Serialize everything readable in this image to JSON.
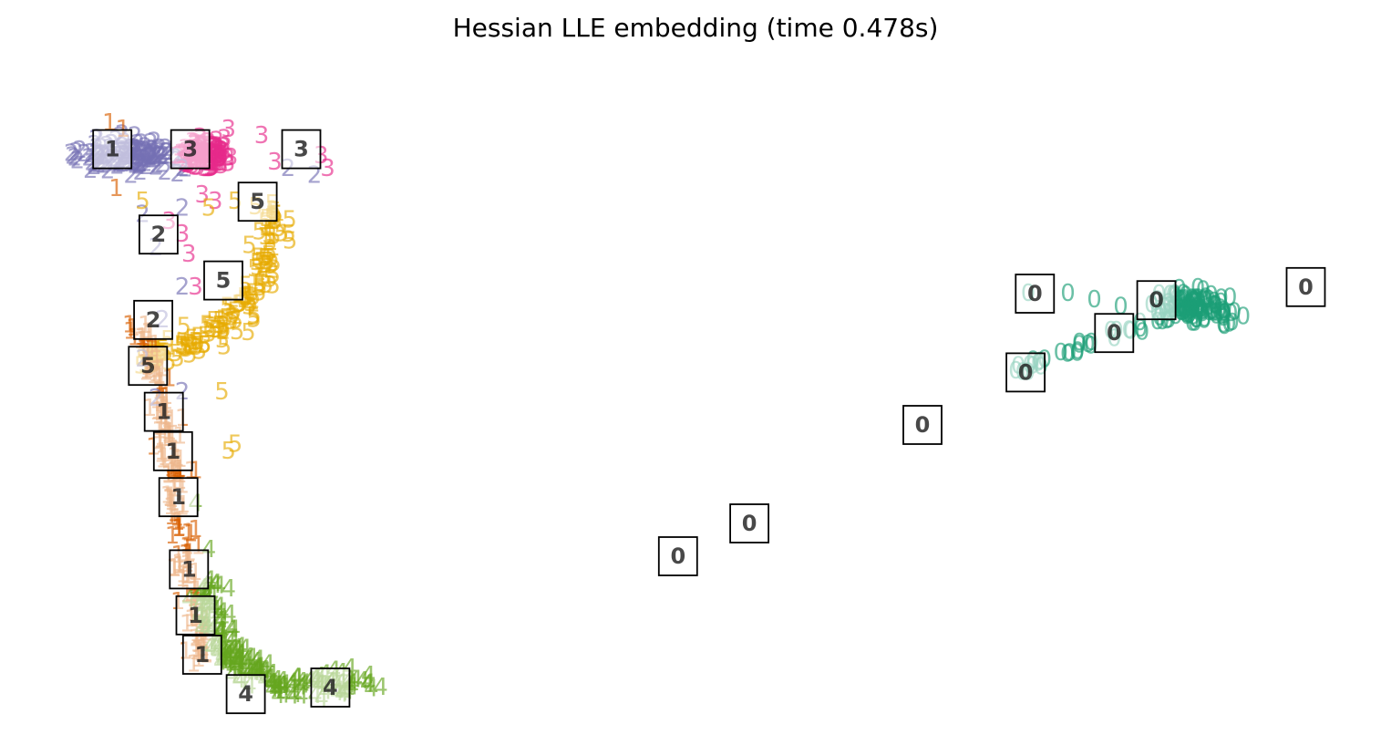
{
  "chart_data": {
    "type": "scatter",
    "title": "Hessian LLE embedding (time 0.478s)",
    "axes_visible": false,
    "grid": false,
    "xlim": [
      0,
      1
    ],
    "ylim": [
      0,
      1
    ],
    "marker": "digit-glyph",
    "digit_colors": {
      "0": "#1b9e77",
      "1": "#d95f02",
      "2": "#7570b3",
      "3": "#e7298a",
      "4": "#66a61e",
      "5": "#e6ab02"
    },
    "clusters": [
      {
        "label": "2",
        "center": [
          0.06,
          0.86
        ],
        "spread": [
          0.035,
          0.02
        ],
        "count": 140
      },
      {
        "label": "3",
        "center": [
          0.115,
          0.86
        ],
        "spread": [
          0.018,
          0.018
        ],
        "count": 120
      },
      {
        "label": "0",
        "center": [
          0.865,
          0.63
        ],
        "spread": [
          0.025,
          0.02
        ],
        "count": 120
      }
    ],
    "paths": [
      {
        "label": "5",
        "points": [
          [
            0.17,
            0.78
          ],
          [
            0.165,
            0.72
          ],
          [
            0.16,
            0.66
          ],
          [
            0.13,
            0.6
          ],
          [
            0.1,
            0.57
          ],
          [
            0.075,
            0.55
          ]
        ],
        "count": 140,
        "jitter": 0.012
      },
      {
        "label": "1",
        "points": [
          [
            0.07,
            0.6
          ],
          [
            0.085,
            0.48
          ],
          [
            0.095,
            0.35
          ],
          [
            0.105,
            0.2
          ],
          [
            0.115,
            0.09
          ]
        ],
        "count": 160,
        "jitter": 0.008
      },
      {
        "label": "4",
        "points": [
          [
            0.115,
            0.2
          ],
          [
            0.125,
            0.13
          ],
          [
            0.15,
            0.08
          ],
          [
            0.18,
            0.05
          ],
          [
            0.24,
            0.06
          ]
        ],
        "count": 180,
        "jitter": 0.012
      },
      {
        "label": "0",
        "points": [
          [
            0.73,
            0.53
          ],
          [
            0.76,
            0.55
          ],
          [
            0.78,
            0.57
          ],
          [
            0.81,
            0.59
          ],
          [
            0.84,
            0.61
          ]
        ],
        "count": 30,
        "jitter": 0.006
      }
    ],
    "outliers": [
      {
        "label": "2",
        "points": [
          [
            0.1,
            0.84
          ],
          [
            0.1,
            0.78
          ],
          [
            0.07,
            0.77
          ],
          [
            0.08,
            0.72
          ],
          [
            0.1,
            0.66
          ],
          [
            0.085,
            0.61
          ],
          [
            0.07,
            0.55
          ],
          [
            0.18,
            0.84
          ],
          [
            0.2,
            0.83
          ],
          [
            0.1,
            0.5
          ],
          [
            0.08,
            0.49
          ]
        ]
      },
      {
        "label": "3",
        "points": [
          [
            0.135,
            0.9
          ],
          [
            0.16,
            0.89
          ],
          [
            0.17,
            0.85
          ],
          [
            0.205,
            0.86
          ],
          [
            0.21,
            0.84
          ],
          [
            0.115,
            0.8
          ],
          [
            0.125,
            0.79
          ],
          [
            0.1,
            0.74
          ],
          [
            0.105,
            0.71
          ],
          [
            0.11,
            0.66
          ],
          [
            0.09,
            0.76
          ]
        ]
      },
      {
        "label": "5",
        "points": [
          [
            0.14,
            0.79
          ],
          [
            0.12,
            0.78
          ],
          [
            0.07,
            0.79
          ],
          [
            0.135,
            0.41
          ],
          [
            0.14,
            0.42
          ],
          [
            0.15,
            0.59
          ],
          [
            0.13,
            0.5
          ]
        ]
      },
      {
        "label": "1",
        "points": [
          [
            0.045,
            0.91
          ],
          [
            0.055,
            0.9
          ],
          [
            0.05,
            0.81
          ],
          [
            0.09,
            0.52
          ],
          [
            0.1,
            0.46
          ],
          [
            0.11,
            0.38
          ],
          [
            0.11,
            0.29
          ]
        ]
      },
      {
        "label": "4",
        "points": [
          [
            0.11,
            0.33
          ],
          [
            0.12,
            0.26
          ],
          [
            0.135,
            0.2
          ],
          [
            0.24,
            0.055
          ],
          [
            0.25,
            0.05
          ]
        ]
      },
      {
        "label": "0",
        "points": [
          [
            0.74,
            0.65
          ],
          [
            0.77,
            0.65
          ],
          [
            0.79,
            0.64
          ],
          [
            0.81,
            0.63
          ],
          [
            0.88,
            0.62
          ]
        ]
      }
    ],
    "thumbnails": [
      {
        "digit": "1",
        "x": 0.047,
        "y": 0.87
      },
      {
        "digit": "3",
        "x": 0.106,
        "y": 0.87
      },
      {
        "digit": "3",
        "x": 0.19,
        "y": 0.87
      },
      {
        "digit": "5",
        "x": 0.157,
        "y": 0.79
      },
      {
        "digit": "2",
        "x": 0.082,
        "y": 0.74
      },
      {
        "digit": "5",
        "x": 0.131,
        "y": 0.67
      },
      {
        "digit": "2",
        "x": 0.078,
        "y": 0.61
      },
      {
        "digit": "5",
        "x": 0.074,
        "y": 0.54
      },
      {
        "digit": "1",
        "x": 0.086,
        "y": 0.47
      },
      {
        "digit": "1",
        "x": 0.093,
        "y": 0.41
      },
      {
        "digit": "1",
        "x": 0.097,
        "y": 0.34
      },
      {
        "digit": "1",
        "x": 0.105,
        "y": 0.23
      },
      {
        "digit": "1",
        "x": 0.11,
        "y": 0.16
      },
      {
        "digit": "1",
        "x": 0.115,
        "y": 0.1
      },
      {
        "digit": "4",
        "x": 0.148,
        "y": 0.04
      },
      {
        "digit": "4",
        "x": 0.212,
        "y": 0.05
      },
      {
        "digit": "0",
        "x": 0.475,
        "y": 0.25
      },
      {
        "digit": "0",
        "x": 0.529,
        "y": 0.3
      },
      {
        "digit": "0",
        "x": 0.66,
        "y": 0.45
      },
      {
        "digit": "0",
        "x": 0.738,
        "y": 0.53
      },
      {
        "digit": "0",
        "x": 0.745,
        "y": 0.65
      },
      {
        "digit": "0",
        "x": 0.805,
        "y": 0.59
      },
      {
        "digit": "0",
        "x": 0.837,
        "y": 0.64
      },
      {
        "digit": "0",
        "x": 0.95,
        "y": 0.66
      }
    ]
  }
}
